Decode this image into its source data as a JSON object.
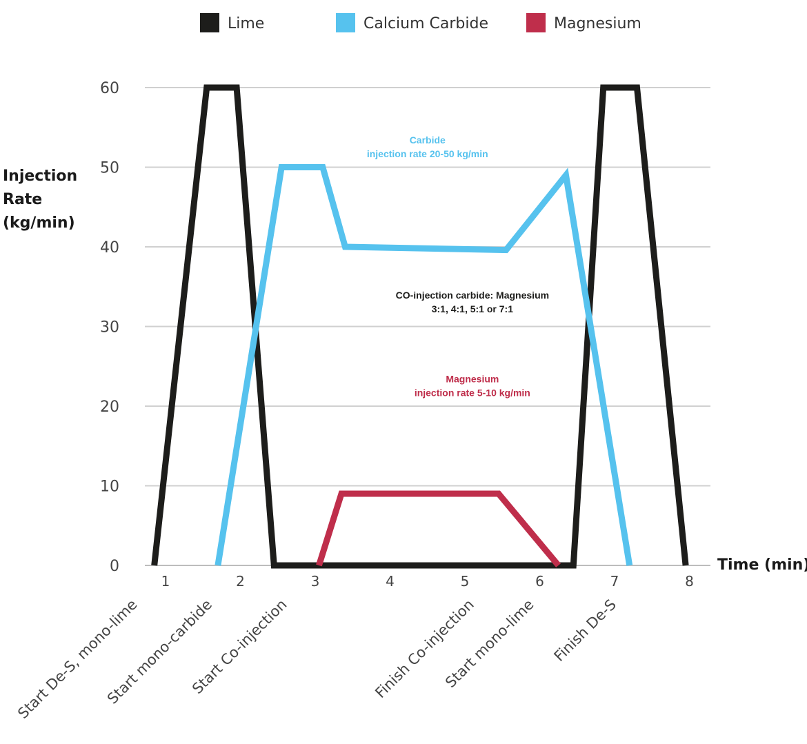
{
  "chart_data": {
    "type": "line",
    "title": "",
    "ylabel_lines": [
      "Injection",
      "Rate",
      "(kg/min)"
    ],
    "xlabel": "Time (min)",
    "ylim": [
      0,
      60
    ],
    "xlim": [
      1,
      8
    ],
    "yticks": [
      0,
      10,
      20,
      30,
      40,
      50,
      60
    ],
    "xticks": [
      1,
      2,
      3,
      4,
      5,
      6,
      7,
      8
    ],
    "grid": true,
    "legend_position": "top",
    "event_labels": [
      {
        "x": 1.0,
        "text": "Start De-S, mono-lime"
      },
      {
        "x": 2.0,
        "text": "Start mono-carbide"
      },
      {
        "x": 3.0,
        "text": "Start Co-injection"
      },
      {
        "x": 5.5,
        "text": "Finish Co-injection"
      },
      {
        "x": 6.3,
        "text": "Start mono-lime"
      },
      {
        "x": 7.4,
        "text": "Finish De-S"
      }
    ],
    "series": [
      {
        "name": "Lime",
        "color": "#1d1d1b",
        "points": [
          [
            0.85,
            0
          ],
          [
            1.55,
            60
          ],
          [
            1.95,
            60
          ],
          [
            2.45,
            0
          ],
          [
            6.45,
            0
          ],
          [
            6.85,
            60
          ],
          [
            7.3,
            60
          ],
          [
            7.95,
            0
          ]
        ]
      },
      {
        "name": "Calcium Carbide",
        "color": "#56c2ee",
        "points": [
          [
            1.7,
            0
          ],
          [
            2.55,
            50
          ],
          [
            3.1,
            50
          ],
          [
            3.4,
            40
          ],
          [
            5.55,
            39.6
          ],
          [
            6.35,
            49
          ],
          [
            7.2,
            0
          ]
        ]
      },
      {
        "name": "Magnesium",
        "color": "#bf2e4b",
        "points": [
          [
            3.05,
            0
          ],
          [
            3.35,
            9
          ],
          [
            5.45,
            9
          ],
          [
            6.25,
            0
          ]
        ]
      }
    ],
    "annotations": [
      {
        "lines": [
          "Carbide",
          "injection rate 20-50 kg/min"
        ],
        "x": 4.5,
        "y": 53,
        "color": "#56c2ee"
      },
      {
        "lines": [
          "CO-injection carbide: Magnesium",
          "3:1, 4:1, 5:1 or 7:1"
        ],
        "x": 5.1,
        "y": 33.5,
        "color": "#1d1d1b"
      },
      {
        "lines": [
          "Magnesium",
          "injection rate 5-10 kg/min"
        ],
        "x": 5.1,
        "y": 23,
        "color": "#bf2e4b"
      }
    ]
  }
}
